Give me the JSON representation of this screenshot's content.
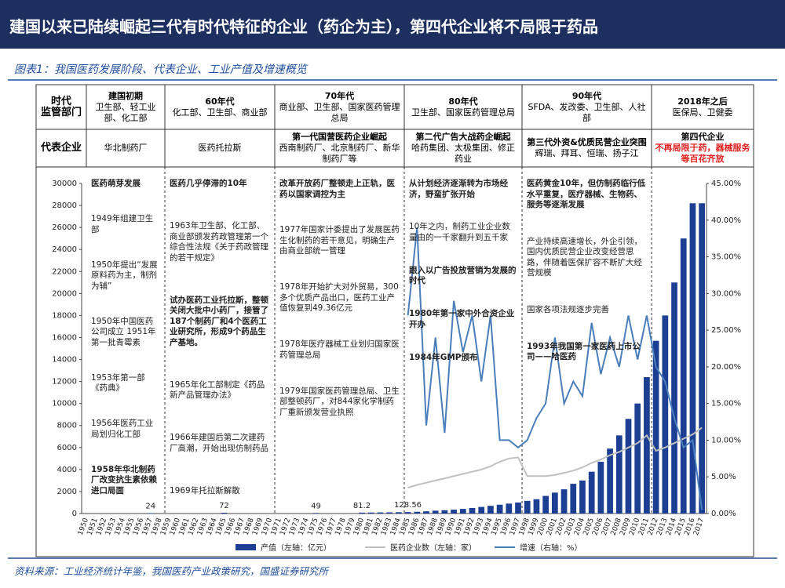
{
  "header": {
    "title": "建国以来已陆续崛起三代有时代特征的企业（药企为主），第四代企业将不局限于药品",
    "subtitle": "图表1：我国医药发展阶段、代表企业、工业产值及增速概览"
  },
  "table": {
    "era_label": "时代",
    "regulator_label": "监管部门",
    "company_label": "代表企业",
    "columns": [
      {
        "era": "建国初期",
        "regulator": "卫生部、轻工业部、化工部",
        "companies": "华北制药厂"
      },
      {
        "era": "60年代",
        "regulator": "化工部、卫生部、商业部",
        "companies": "医药托拉斯"
      },
      {
        "era": "70年代",
        "regulator": "商业部、卫生部、国家医药管理总局",
        "companies_title": "第一代国营医药企业崛起",
        "companies": "西南制药厂、北京制药厂、新华制药厂等"
      },
      {
        "era": "80年代",
        "regulator": "卫生部、国家医药管理总局",
        "companies_title": "第二代广告大战药企崛起",
        "companies": "哈药集团、太极集团、修正药业"
      },
      {
        "era": "90年代",
        "regulator": "SFDA、发改委、卫生部、人社部",
        "companies_title": "第三代外资&优质民营企业突围",
        "companies": "辉瑞、拜耳、恒瑞、扬子江"
      },
      {
        "era": "2018年之后",
        "regulator": "医保局、卫健委",
        "companies_title": "第四代企业",
        "companies": "不再局限于药，器械服务等百花齐放",
        "companies_color": "#e02020"
      }
    ]
  },
  "annotations": [
    [
      {
        "text": "医药萌芽发展",
        "bold": true
      },
      {
        "text": "1949年组建卫生部"
      },
      {
        "text": "1950年提出“发展原料药为主，制剂为辅”"
      },
      {
        "text": "1950年中国医药公司成立 1951年第一批青霉素"
      },
      {
        "text": "1953年第一部《药典》"
      },
      {
        "text": "1956年医药工业局划归化工部"
      },
      {
        "text": "1958年华北制药厂改变抗生素依赖进口局面",
        "bold": true
      }
    ],
    [
      {
        "text": "医药几乎停滞的10年",
        "bold": true
      },
      {
        "text": "1963年卫生部、化工部、商业部颁发药政管理第一个综合性法规《关于药政管理的若干规定》"
      },
      {
        "text": "试办医药工业托拉斯，整顿关闭大批中小药厂，接管了187个制药厂和4个医药工业研究所，形成9个药品生产基地。",
        "bold": true
      },
      {
        "text": "1965年化工部制定《药品新产品管理办法》"
      },
      {
        "text": "1966年建国后第二次建药厂高潮，开始出现仿制药品"
      },
      {
        "text": "1969年托拉斯解散"
      }
    ],
    [
      {
        "text": "改革开放药厂整顿走上正轨，医药以国家调控为主",
        "bold": true
      },
      {
        "text": "1977年国家计委提出了发展医药生化制药的若干意见，明确生产由商业部统一管理"
      },
      {
        "text": "1978年开始扩大对外贸易，300多个优质产品出口，医药工业产值恢复到49.36亿元"
      },
      {
        "text": "1978年医疗器械工业划归国家医药管理总局"
      },
      {
        "text": "1979年国家医药管理总局、卫生部整顿药厂，对844家化学制药厂重新颁发营业执照"
      }
    ],
    [
      {
        "text": "从计划经济逐渐转为市场经济，野蛮扩张开始",
        "bold": true
      },
      {
        "text": "10年之内，制药工业企业数量由的一千家翻升到五千家"
      },
      {
        "text": "跟入以广告投放营销为发展的时代",
        "bold": true
      },
      {
        "text": "1980年第一家中外合资企业开办",
        "bold": true
      },
      {
        "text": "1984年GMP颁布",
        "bold": true
      }
    ],
    [
      {
        "text": "医药黄金10年，但仿制药临行低水平重复，医疗器械、生物药、服务等逐渐发展",
        "bold": true
      },
      {
        "text": "产业持续高速增长，外企引领，国内优质民营企业改变经营思路，伴随着医保扩容不断扩大经营规模"
      },
      {
        "text": "国家各项法规逐步完善"
      },
      {
        "text": "1993年我国第一家医药上市公司——哈医药",
        "bold": true
      }
    ]
  ],
  "chart_data": {
    "type": "bar",
    "categories": [
      "1950",
      "1951",
      "1952",
      "1953",
      "1954",
      "1955",
      "1956",
      "1957",
      "1958",
      "1959",
      "1960",
      "1961",
      "1962",
      "1963",
      "1964",
      "1965",
      "1966",
      "1967",
      "1968",
      "1969",
      "1970",
      "1971",
      "1972",
      "1973",
      "1974",
      "1975",
      "1976",
      "1977",
      "1978",
      "1979",
      "1980",
      "1981",
      "1982",
      "1983",
      "1984",
      "1985",
      "1986",
      "1987",
      "1988",
      "1989",
      "1990",
      "1991",
      "1992",
      "1993",
      "1994",
      "1995",
      "1996",
      "1997",
      "1998",
      "1999",
      "2000",
      "2001",
      "2002",
      "2003",
      "2004",
      "2005",
      "2006",
      "2007",
      "2008",
      "2009",
      "2010",
      "2011",
      "2012",
      "2013",
      "2014",
      "2015",
      "2016",
      "2017"
    ],
    "series": [
      {
        "name": "产值（左轴：亿元）",
        "color": "#1c3f94",
        "values": [
          null,
          null,
          null,
          null,
          null,
          null,
          null,
          24,
          null,
          null,
          null,
          null,
          null,
          null,
          null,
          72,
          null,
          null,
          null,
          null,
          null,
          null,
          null,
          null,
          null,
          49,
          null,
          null,
          null,
          null,
          81.2,
          90,
          100,
          110,
          120,
          128.56,
          160,
          200,
          260,
          300,
          350,
          420,
          500,
          600,
          700,
          800,
          900,
          1000,
          1150,
          1300,
          1600,
          1900,
          2200,
          2700,
          3000,
          3800,
          4700,
          5900,
          7100,
          8600,
          10000,
          12400,
          15700,
          18000,
          21000,
          25000,
          28200,
          28200
        ],
        "value_labels": [
          null,
          null,
          null,
          null,
          null,
          null,
          null,
          "24",
          null,
          null,
          null,
          null,
          null,
          null,
          null,
          "72",
          null,
          null,
          null,
          null,
          null,
          null,
          null,
          null,
          null,
          "49",
          null,
          null,
          null,
          null,
          "81.2",
          null,
          null,
          null,
          null,
          "128.56",
          null,
          null,
          null,
          null,
          null,
          null,
          null,
          null,
          null,
          null,
          null,
          null,
          null,
          null,
          null,
          null,
          null,
          null,
          null,
          null,
          null,
          null,
          null,
          null,
          null,
          null,
          null,
          null,
          null,
          null,
          null,
          null
        ]
      },
      {
        "name": "医药企业数（左轴：家）",
        "type": "line",
        "color": "#c0c0c0",
        "values": [
          null,
          null,
          null,
          null,
          null,
          null,
          null,
          null,
          null,
          null,
          null,
          null,
          null,
          null,
          null,
          null,
          null,
          null,
          null,
          null,
          null,
          null,
          null,
          null,
          null,
          null,
          null,
          null,
          null,
          null,
          null,
          null,
          null,
          null,
          null,
          2350,
          2600,
          2800,
          3000,
          3200,
          3400,
          3600,
          3800,
          4000,
          4300,
          4700,
          5000,
          5100,
          3400,
          3400,
          3400,
          3500,
          3700,
          3900,
          4200,
          4600,
          4900,
          5300,
          5600,
          6000,
          6400,
          7100,
          5700,
          6000,
          6400,
          6800,
          7200,
          7800
        ]
      },
      {
        "name": "增速（右轴：%）",
        "type": "line",
        "axis": "y2",
        "color": "#4a7ebb",
        "values": [
          null,
          null,
          null,
          null,
          null,
          null,
          null,
          null,
          null,
          null,
          null,
          null,
          null,
          null,
          null,
          null,
          null,
          null,
          null,
          null,
          null,
          null,
          null,
          null,
          null,
          null,
          null,
          null,
          null,
          null,
          null,
          null,
          null,
          null,
          null,
          27,
          39,
          12,
          24,
          11,
          29,
          22,
          27,
          18,
          27,
          10,
          10,
          9,
          10,
          13,
          15,
          24,
          15,
          18,
          16,
          26,
          19,
          24,
          20,
          27,
          21,
          27,
          20,
          18,
          13,
          9,
          10,
          0.5
        ]
      }
    ],
    "ylim": [
      0,
      30000
    ],
    "yticks": [
      0,
      2000,
      4000,
      6000,
      8000,
      10000,
      12000,
      14000,
      16000,
      18000,
      20000,
      22000,
      24000,
      26000,
      28000,
      30000
    ],
    "y2lim": [
      0,
      45
    ],
    "y2ticks": [
      {
        "value": 0,
        "label": "0.00%"
      },
      {
        "value": 5,
        "label": "5.00%"
      },
      {
        "value": 10,
        "label": "10.00%"
      },
      {
        "value": 15,
        "label": "15.00%"
      },
      {
        "value": 20,
        "label": "20.00%"
      },
      {
        "value": 25,
        "label": "25.00%"
      },
      {
        "value": 30,
        "label": "30.00%"
      },
      {
        "value": 35,
        "label": "35.00%"
      },
      {
        "value": 40,
        "label": "40.00%"
      },
      {
        "value": 45,
        "label": "45.00%"
      }
    ],
    "grid": false,
    "legend": "bottom"
  },
  "source": "资料来源：工业经济统计年鉴，我国医药产业政策研究，国盛证券研究所"
}
